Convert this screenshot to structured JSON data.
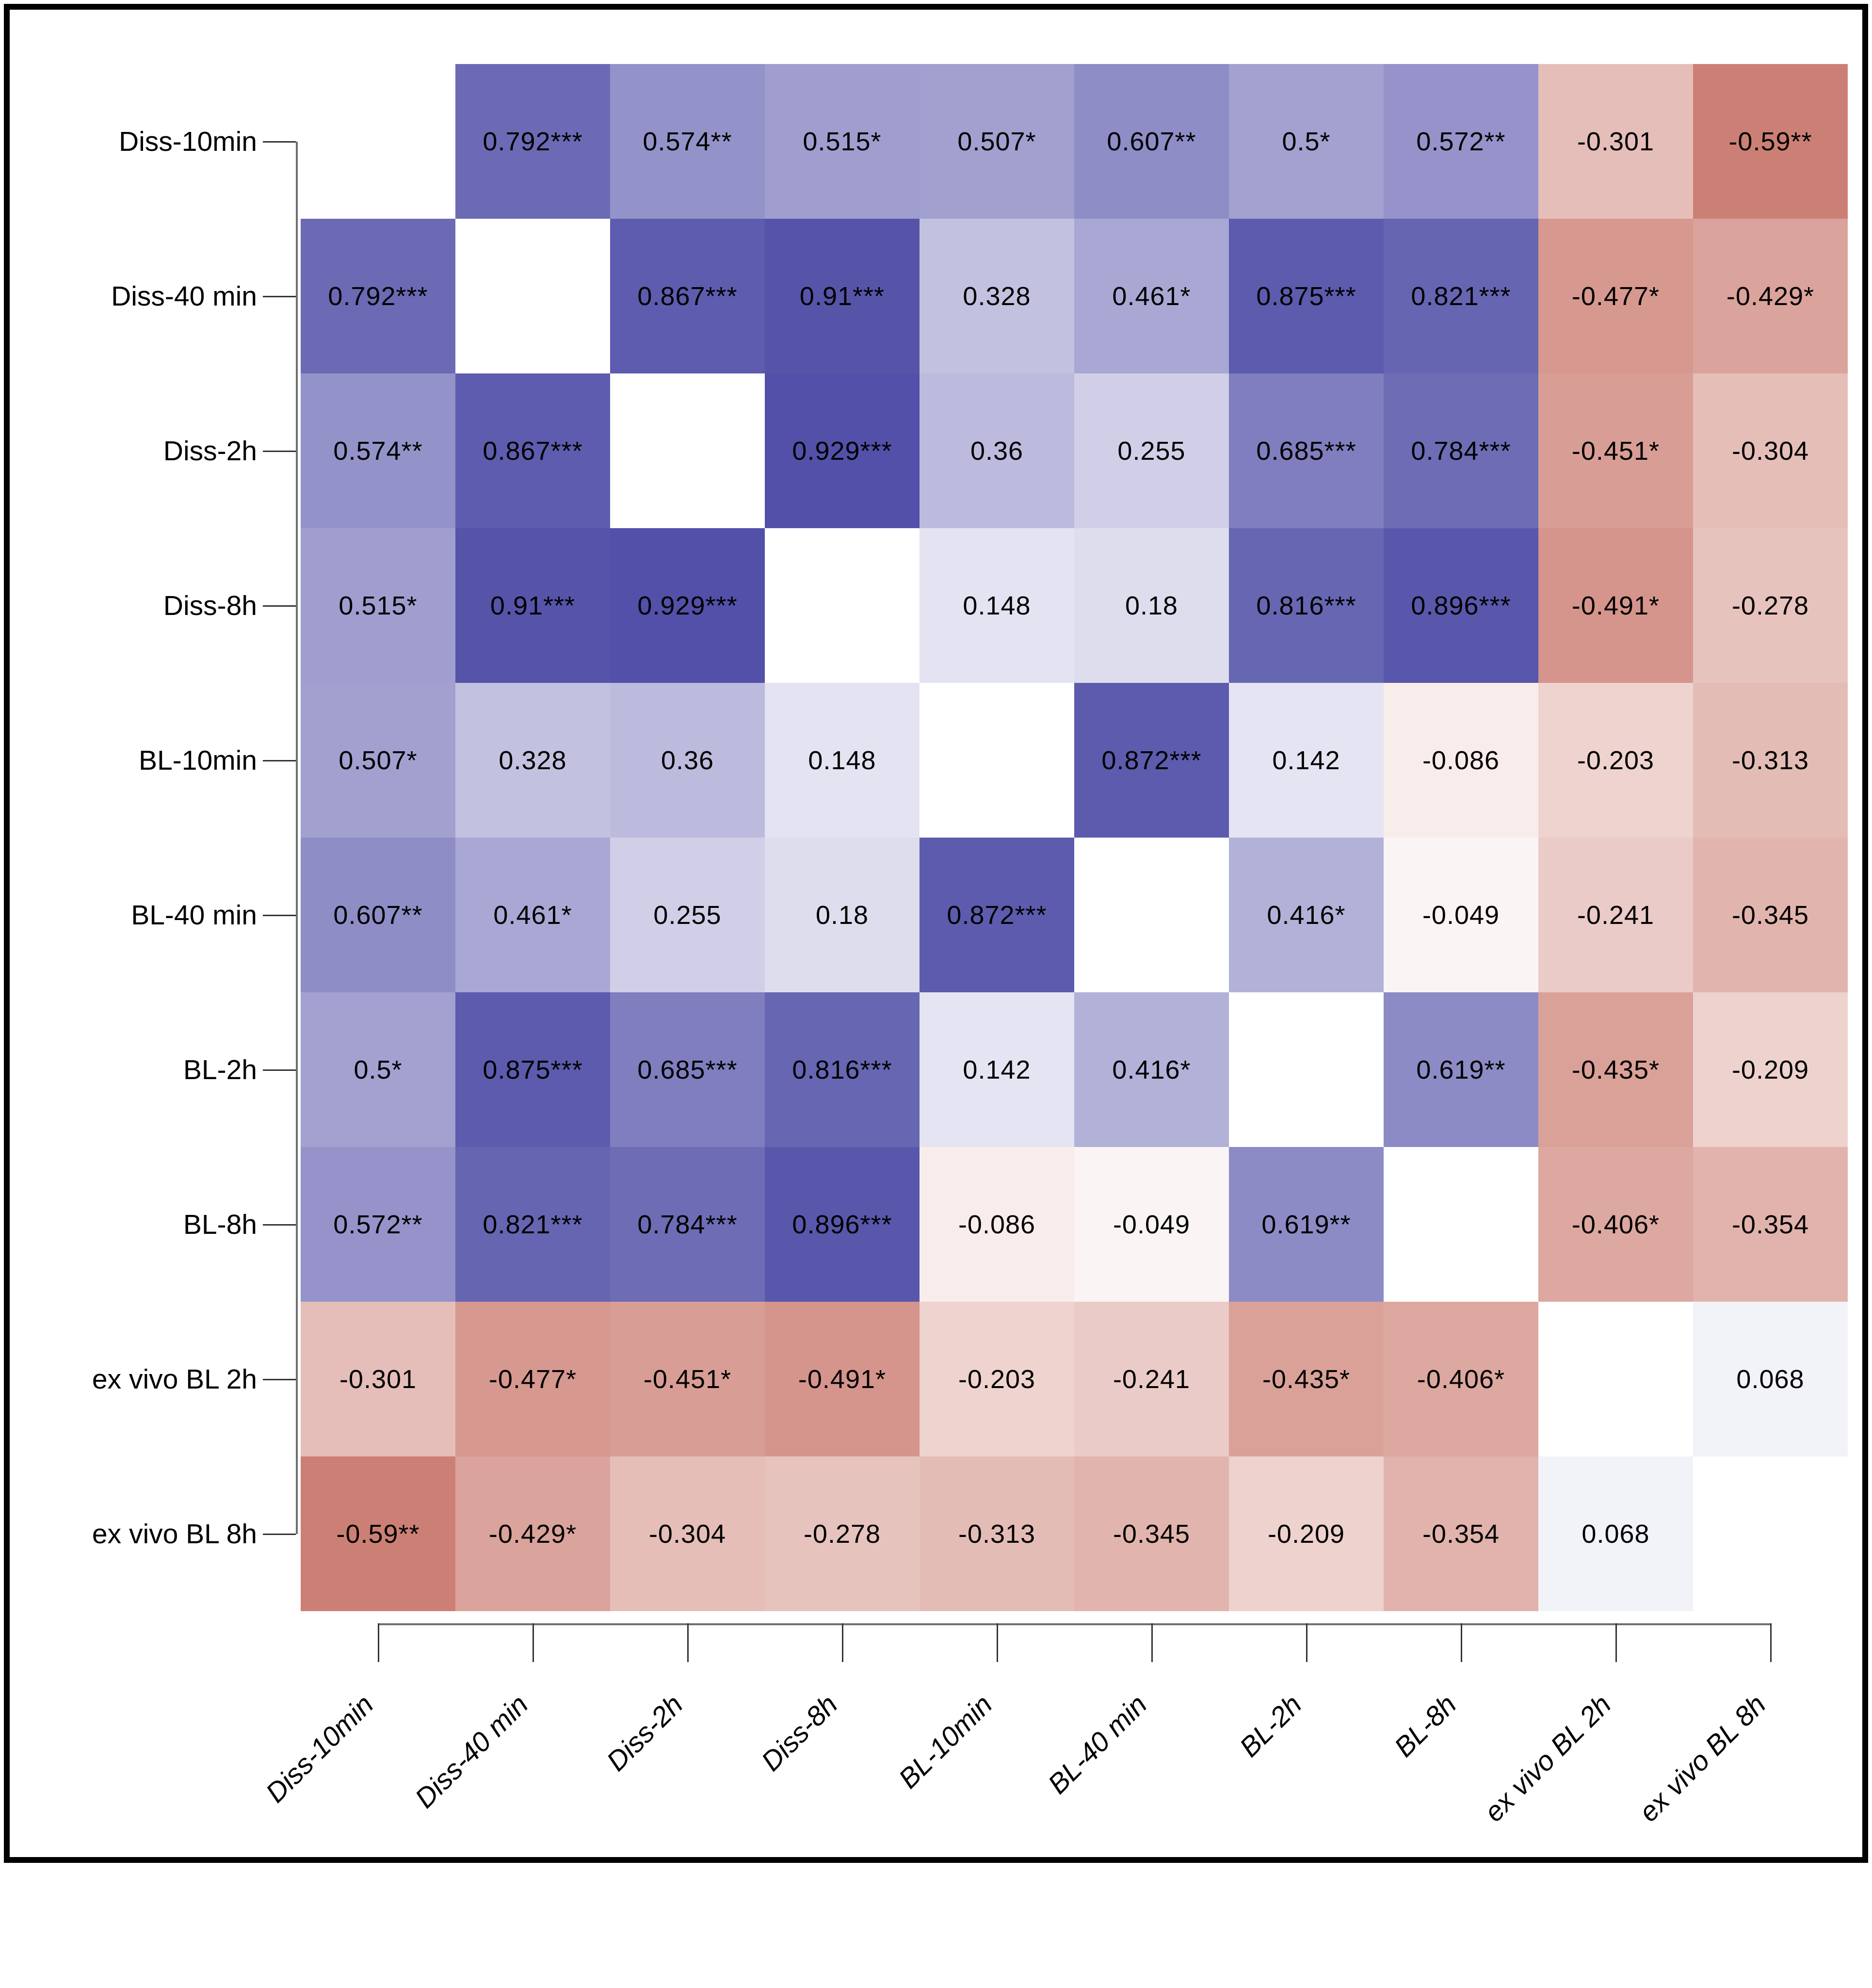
{
  "figure": {
    "background": "#ffffff",
    "border_color": "#000000"
  },
  "chart_data": {
    "type": "heatmap",
    "title": "",
    "xlabel": "",
    "ylabel": "",
    "legend_position": "none",
    "grid": false,
    "x_label_rotation_deg": 45,
    "x_label_style": "italic",
    "color_scale": {
      "domain": [
        -1,
        1
      ],
      "negative_end": "#a92815",
      "zero": "#ffffff",
      "positive_end": "#4543a1"
    },
    "categories": [
      "Diss-10min",
      "Diss-40 min",
      "Diss-2h",
      "Diss-8h",
      "BL-10min",
      "BL-40 min",
      "BL-2h",
      "BL-8h",
      "ex vivo BL 2h",
      "ex vivo BL 8h"
    ],
    "matrix": [
      [
        null,
        0.792,
        0.574,
        0.515,
        0.507,
        0.607,
        0.5,
        0.572,
        -0.301,
        -0.59
      ],
      [
        0.792,
        null,
        0.867,
        0.91,
        0.328,
        0.461,
        0.875,
        0.821,
        -0.477,
        -0.429
      ],
      [
        0.574,
        0.867,
        null,
        0.929,
        0.36,
        0.255,
        0.685,
        0.784,
        -0.451,
        -0.304
      ],
      [
        0.515,
        0.91,
        0.929,
        null,
        0.148,
        0.18,
        0.816,
        0.896,
        -0.491,
        -0.278
      ],
      [
        0.507,
        0.328,
        0.36,
        0.148,
        null,
        0.872,
        0.142,
        -0.086,
        -0.203,
        -0.313
      ],
      [
        0.607,
        0.461,
        0.255,
        0.18,
        0.872,
        null,
        0.416,
        -0.049,
        -0.241,
        -0.345
      ],
      [
        0.5,
        0.875,
        0.685,
        0.816,
        0.142,
        0.416,
        null,
        0.619,
        -0.435,
        -0.209
      ],
      [
        0.572,
        0.821,
        0.784,
        0.896,
        -0.086,
        -0.049,
        0.619,
        null,
        -0.406,
        -0.354
      ],
      [
        -0.301,
        -0.477,
        -0.451,
        -0.491,
        -0.203,
        -0.241,
        -0.435,
        -0.406,
        null,
        0.068
      ],
      [
        -0.59,
        -0.429,
        -0.304,
        -0.278,
        -0.313,
        -0.345,
        -0.209,
        -0.354,
        0.068,
        null
      ]
    ],
    "significance_stars": [
      [
        0,
        3,
        2,
        1,
        1,
        2,
        1,
        2,
        0,
        2
      ],
      [
        3,
        0,
        3,
        3,
        0,
        1,
        3,
        3,
        1,
        1
      ],
      [
        2,
        3,
        0,
        3,
        0,
        0,
        3,
        3,
        1,
        0
      ],
      [
        1,
        3,
        3,
        0,
        0,
        0,
        3,
        3,
        1,
        0
      ],
      [
        1,
        0,
        0,
        0,
        0,
        3,
        0,
        0,
        0,
        0
      ],
      [
        2,
        1,
        0,
        0,
        3,
        0,
        1,
        0,
        0,
        0
      ],
      [
        1,
        3,
        3,
        3,
        0,
        1,
        0,
        2,
        1,
        0
      ],
      [
        2,
        3,
        3,
        3,
        0,
        0,
        2,
        0,
        1,
        0
      ],
      [
        0,
        1,
        1,
        1,
        0,
        0,
        1,
        1,
        0,
        0
      ],
      [
        2,
        1,
        0,
        0,
        0,
        0,
        0,
        0,
        0,
        0
      ]
    ]
  }
}
